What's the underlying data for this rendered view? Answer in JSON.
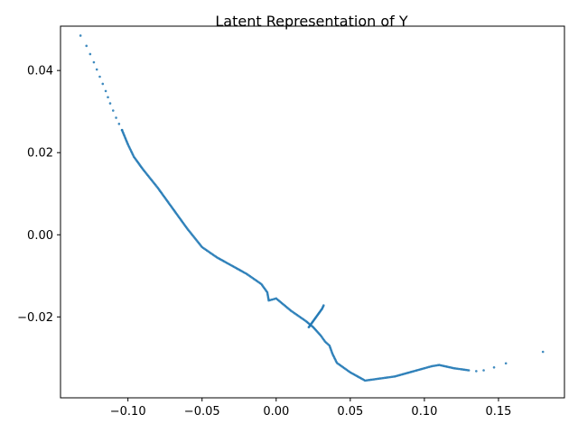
{
  "chart_data": {
    "type": "scatter",
    "title": "Latent Representation of Y",
    "xlabel": "",
    "ylabel": "",
    "xlim": [
      -0.1455,
      0.1945
    ],
    "ylim": [
      -0.0397,
      0.0508
    ],
    "x_ticks": [
      -0.1,
      -0.05,
      0.0,
      0.05,
      0.1,
      0.15
    ],
    "x_tick_labels": [
      "−0.10",
      "−0.05",
      "0.00",
      "0.05",
      "0.10",
      "0.15"
    ],
    "y_ticks": [
      -0.02,
      0.0,
      0.02,
      0.04
    ],
    "y_tick_labels": [
      "−0.02",
      "0.00",
      "0.02",
      "0.04"
    ],
    "grid": false,
    "marker_color": "#1f77b4",
    "path": [
      [
        -0.132,
        0.0485
      ],
      [
        -0.128,
        0.046
      ],
      [
        -0.123,
        0.042
      ],
      [
        -0.115,
        0.035
      ],
      [
        -0.112,
        0.032
      ],
      [
        -0.108,
        0.0285
      ],
      [
        -0.104,
        0.0255
      ],
      [
        -0.1,
        0.022
      ],
      [
        -0.096,
        0.019
      ],
      [
        -0.09,
        0.016
      ],
      [
        -0.08,
        0.0115
      ],
      [
        -0.07,
        0.0065
      ],
      [
        -0.06,
        0.0015
      ],
      [
        -0.05,
        -0.003
      ],
      [
        -0.04,
        -0.0055
      ],
      [
        -0.03,
        -0.0075
      ],
      [
        -0.02,
        -0.0095
      ],
      [
        -0.01,
        -0.012
      ],
      [
        -0.006,
        -0.014
      ],
      [
        -0.005,
        -0.016
      ],
      [
        0.0,
        -0.0155
      ],
      [
        0.01,
        -0.0185
      ],
      [
        0.02,
        -0.021
      ],
      [
        0.025,
        -0.0225
      ],
      [
        0.03,
        -0.0245
      ],
      [
        0.033,
        -0.026
      ],
      [
        0.036,
        -0.027
      ],
      [
        0.038,
        -0.029
      ],
      [
        0.041,
        -0.0312
      ],
      [
        0.05,
        -0.0335
      ],
      [
        0.06,
        -0.0355
      ],
      [
        0.07,
        -0.035
      ],
      [
        0.08,
        -0.0345
      ],
      [
        0.09,
        -0.0335
      ],
      [
        0.1,
        -0.0325
      ],
      [
        0.105,
        -0.032
      ],
      [
        0.11,
        -0.0317
      ],
      [
        0.12,
        -0.0325
      ],
      [
        0.13,
        -0.033
      ]
    ],
    "branch": [
      [
        0.022,
        -0.0225
      ],
      [
        0.025,
        -0.021
      ],
      [
        0.028,
        -0.0195
      ],
      [
        0.031,
        -0.018
      ],
      [
        0.032,
        -0.0172
      ]
    ],
    "outliers": [
      [
        0.135,
        -0.0332
      ],
      [
        0.14,
        -0.033
      ],
      [
        0.147,
        -0.0323
      ],
      [
        0.155,
        -0.0313
      ],
      [
        0.18,
        -0.0285
      ]
    ]
  }
}
